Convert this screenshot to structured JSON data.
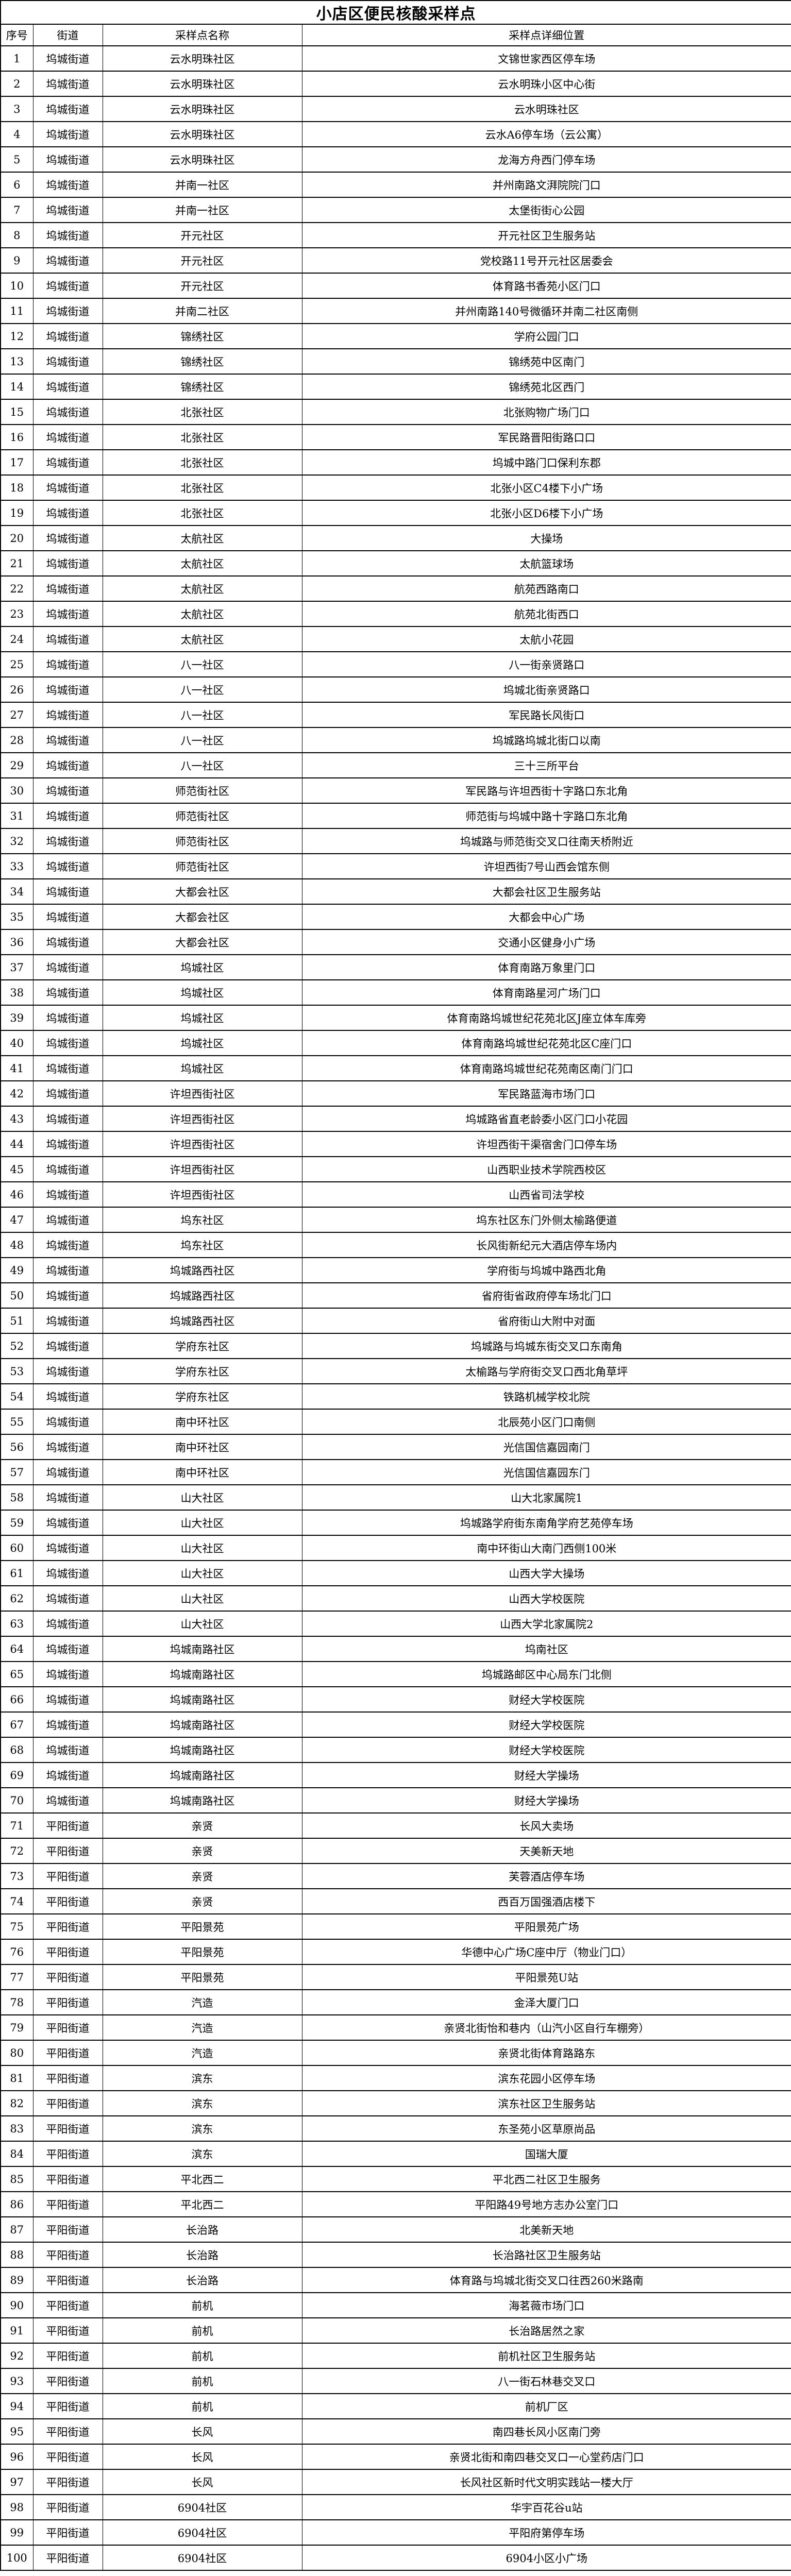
{
  "title": "小店区便民核酸采样点",
  "columns": [
    "序号",
    "街道",
    "采样点名称",
    "采样点详细位置"
  ],
  "rows": [
    [
      "1",
      "坞城街道",
      "云水明珠社区",
      "文锦世家西区停车场"
    ],
    [
      "2",
      "坞城街道",
      "云水明珠社区",
      "云水明珠小区中心街"
    ],
    [
      "3",
      "坞城街道",
      "云水明珠社区",
      "云水明珠社区"
    ],
    [
      "4",
      "坞城街道",
      "云水明珠社区",
      "云水A6停车场（云公寓）"
    ],
    [
      "5",
      "坞城街道",
      "云水明珠社区",
      "龙海方舟西门停车场"
    ],
    [
      "6",
      "坞城街道",
      "并南一社区",
      "并州南路文湃院院门口"
    ],
    [
      "7",
      "坞城街道",
      "并南一社区",
      "太堡街街心公园"
    ],
    [
      "8",
      "坞城街道",
      "开元社区",
      "开元社区卫生服务站"
    ],
    [
      "9",
      "坞城街道",
      "开元社区",
      "党校路11号开元社区居委会"
    ],
    [
      "10",
      "坞城街道",
      "开元社区",
      "体育路书香苑小区门口"
    ],
    [
      "11",
      "坞城街道",
      "并南二社区",
      "并州南路140号微循环并南二社区南侧"
    ],
    [
      "12",
      "坞城街道",
      "锦绣社区",
      "学府公园门口"
    ],
    [
      "13",
      "坞城街道",
      "锦绣社区",
      "锦绣苑中区南门"
    ],
    [
      "14",
      "坞城街道",
      "锦绣社区",
      "锦绣苑北区西门"
    ],
    [
      "15",
      "坞城街道",
      "北张社区",
      "北张购物广场门口"
    ],
    [
      "16",
      "坞城街道",
      "北张社区",
      "军民路晋阳街路口口"
    ],
    [
      "17",
      "坞城街道",
      "北张社区",
      "坞城中路门口保利东郡"
    ],
    [
      "18",
      "坞城街道",
      "北张社区",
      "北张小区C4楼下小广场"
    ],
    [
      "19",
      "坞城街道",
      "北张社区",
      "北张小区D6楼下小广场"
    ],
    [
      "20",
      "坞城街道",
      "太航社区",
      "大操场"
    ],
    [
      "21",
      "坞城街道",
      "太航社区",
      "太航篮球场"
    ],
    [
      "22",
      "坞城街道",
      "太航社区",
      "航苑西路南口"
    ],
    [
      "23",
      "坞城街道",
      "太航社区",
      "航苑北街西口"
    ],
    [
      "24",
      "坞城街道",
      "太航社区",
      "太航小花园"
    ],
    [
      "25",
      "坞城街道",
      "八一社区",
      "八一街亲贤路口"
    ],
    [
      "26",
      "坞城街道",
      "八一社区",
      "坞城北街亲贤路口"
    ],
    [
      "27",
      "坞城街道",
      "八一社区",
      "军民路长风街口"
    ],
    [
      "28",
      "坞城街道",
      "八一社区",
      "坞城路坞城北街口以南"
    ],
    [
      "29",
      "坞城街道",
      "八一社区",
      "三十三所平台"
    ],
    [
      "30",
      "坞城街道",
      "师范街社区",
      "军民路与许坦西街十字路口东北角"
    ],
    [
      "31",
      "坞城街道",
      "师范街社区",
      "师范街与坞城中路十字路口东北角"
    ],
    [
      "32",
      "坞城街道",
      "师范街社区",
      "坞城路与师范街交叉口往南天桥附近"
    ],
    [
      "33",
      "坞城街道",
      "师范街社区",
      "许坦西街7号山西会馆东侧"
    ],
    [
      "34",
      "坞城街道",
      "大都会社区",
      "大都会社区卫生服务站"
    ],
    [
      "35",
      "坞城街道",
      "大都会社区",
      "大都会中心广场"
    ],
    [
      "36",
      "坞城街道",
      "大都会社区",
      "交通小区健身小广场"
    ],
    [
      "37",
      "坞城街道",
      "坞城社区",
      "体育南路万象里门口"
    ],
    [
      "38",
      "坞城街道",
      "坞城社区",
      "体育南路星河广场门口"
    ],
    [
      "39",
      "坞城街道",
      "坞城社区",
      "体育南路坞城世纪花苑北区J座立体车库旁"
    ],
    [
      "40",
      "坞城街道",
      "坞城社区",
      "体育南路坞城世纪花苑北区C座门口"
    ],
    [
      "41",
      "坞城街道",
      "坞城社区",
      "体育南路坞城世纪花苑南区南门门口"
    ],
    [
      "42",
      "坞城街道",
      "许坦西街社区",
      "军民路蓝海市场门口"
    ],
    [
      "43",
      "坞城街道",
      "许坦西街社区",
      "坞城路省直老龄委小区门口小花园"
    ],
    [
      "44",
      "坞城街道",
      "许坦西街社区",
      "许坦西街干渠宿舍门口停车场"
    ],
    [
      "45",
      "坞城街道",
      "许坦西街社区",
      "山西职业技术学院西校区"
    ],
    [
      "46",
      "坞城街道",
      "许坦西街社区",
      "山西省司法学校"
    ],
    [
      "47",
      "坞城街道",
      "坞东社区",
      "坞东社区东门外侧太榆路便道"
    ],
    [
      "48",
      "坞城街道",
      "坞东社区",
      "长风街新纪元大酒店停车场内"
    ],
    [
      "49",
      "坞城街道",
      "坞城路西社区",
      "学府街与坞城中路西北角"
    ],
    [
      "50",
      "坞城街道",
      "坞城路西社区",
      "省府街省政府停车场北门口"
    ],
    [
      "51",
      "坞城街道",
      "坞城路西社区",
      "省府街山大附中对面"
    ],
    [
      "52",
      "坞城街道",
      "学府东社区",
      "坞城路与坞城东街交叉口东南角"
    ],
    [
      "53",
      "坞城街道",
      "学府东社区",
      "太榆路与学府街交叉口西北角草坪"
    ],
    [
      "54",
      "坞城街道",
      "学府东社区",
      "铁路机械学校北院"
    ],
    [
      "55",
      "坞城街道",
      "南中环社区",
      "北辰苑小区门口南侧"
    ],
    [
      "56",
      "坞城街道",
      "南中环社区",
      "光信国信嘉园南门"
    ],
    [
      "57",
      "坞城街道",
      "南中环社区",
      "光信国信嘉园东门"
    ],
    [
      "58",
      "坞城街道",
      "山大社区",
      "山大北家属院1"
    ],
    [
      "59",
      "坞城街道",
      "山大社区",
      "坞城路学府街东南角学府艺苑停车场"
    ],
    [
      "60",
      "坞城街道",
      "山大社区",
      "南中环街山大南门西侧100米"
    ],
    [
      "61",
      "坞城街道",
      "山大社区",
      "山西大学大操场"
    ],
    [
      "62",
      "坞城街道",
      "山大社区",
      "山西大学校医院"
    ],
    [
      "63",
      "坞城街道",
      "山大社区",
      "山西大学北家属院2"
    ],
    [
      "64",
      "坞城街道",
      "坞城南路社区",
      "坞南社区"
    ],
    [
      "65",
      "坞城街道",
      "坞城南路社区",
      "坞城路邮区中心局东门北侧"
    ],
    [
      "66",
      "坞城街道",
      "坞城南路社区",
      "财经大学校医院"
    ],
    [
      "67",
      "坞城街道",
      "坞城南路社区",
      "财经大学校医院"
    ],
    [
      "68",
      "坞城街道",
      "坞城南路社区",
      "财经大学校医院"
    ],
    [
      "69",
      "坞城街道",
      "坞城南路社区",
      "财经大学操场"
    ],
    [
      "70",
      "坞城街道",
      "坞城南路社区",
      "财经大学操场"
    ],
    [
      "71",
      "平阳街道",
      "亲贤",
      "长风大卖场"
    ],
    [
      "72",
      "平阳街道",
      "亲贤",
      "天美新天地"
    ],
    [
      "73",
      "平阳街道",
      "亲贤",
      "芙蓉酒店停车场"
    ],
    [
      "74",
      "平阳街道",
      "亲贤",
      "西百万国强酒店楼下"
    ],
    [
      "75",
      "平阳街道",
      "平阳景苑",
      "平阳景苑广场"
    ],
    [
      "76",
      "平阳街道",
      "平阳景苑",
      "华德中心广场C座中厅（物业门口）"
    ],
    [
      "77",
      "平阳街道",
      "平阳景苑",
      "平阳景苑U站"
    ],
    [
      "78",
      "平阳街道",
      "汽造",
      "金泽大厦门口"
    ],
    [
      "79",
      "平阳街道",
      "汽造",
      "亲贤北街怡和巷内（山汽小区自行车棚旁）"
    ],
    [
      "80",
      "平阳街道",
      "汽造",
      "亲贤北街体育路路东"
    ],
    [
      "81",
      "平阳街道",
      "滨东",
      "滨东花园小区停车场"
    ],
    [
      "82",
      "平阳街道",
      "滨东",
      "滨东社区卫生服务站"
    ],
    [
      "83",
      "平阳街道",
      "滨东",
      "东圣苑小区草原尚品"
    ],
    [
      "84",
      "平阳街道",
      "滨东",
      "国瑞大厦"
    ],
    [
      "85",
      "平阳街道",
      "平北西二",
      "平北西二社区卫生服务"
    ],
    [
      "86",
      "平阳街道",
      "平北西二",
      "平阳路49号地方志办公室门口"
    ],
    [
      "87",
      "平阳街道",
      "长治路",
      "北美新天地"
    ],
    [
      "88",
      "平阳街道",
      "长治路",
      "长治路社区卫生服务站"
    ],
    [
      "89",
      "平阳街道",
      "长治路",
      "体育路与坞城北街交叉口往西260米路南"
    ],
    [
      "90",
      "平阳街道",
      "前机",
      "海茗薇市场门口"
    ],
    [
      "91",
      "平阳街道",
      "前机",
      "长治路居然之家"
    ],
    [
      "92",
      "平阳街道",
      "前机",
      "前机社区卫生服务站"
    ],
    [
      "93",
      "平阳街道",
      "前机",
      "八一街石林巷交叉口"
    ],
    [
      "94",
      "平阳街道",
      "前机",
      "前机厂区"
    ],
    [
      "95",
      "平阳街道",
      "长风",
      "南四巷长风小区南门旁"
    ],
    [
      "96",
      "平阳街道",
      "长风",
      "亲贤北街和南四巷交叉口一心堂药店门口"
    ],
    [
      "97",
      "平阳街道",
      "长风",
      "长风社区新时代文明实践站一楼大厅"
    ],
    [
      "98",
      "平阳街道",
      "6904社区",
      "华宇百花谷u站"
    ],
    [
      "99",
      "平阳街道",
      "6904社区",
      "平阳府第停车场"
    ],
    [
      "100",
      "平阳街道",
      "6904社区",
      "6904小区小广场"
    ]
  ]
}
